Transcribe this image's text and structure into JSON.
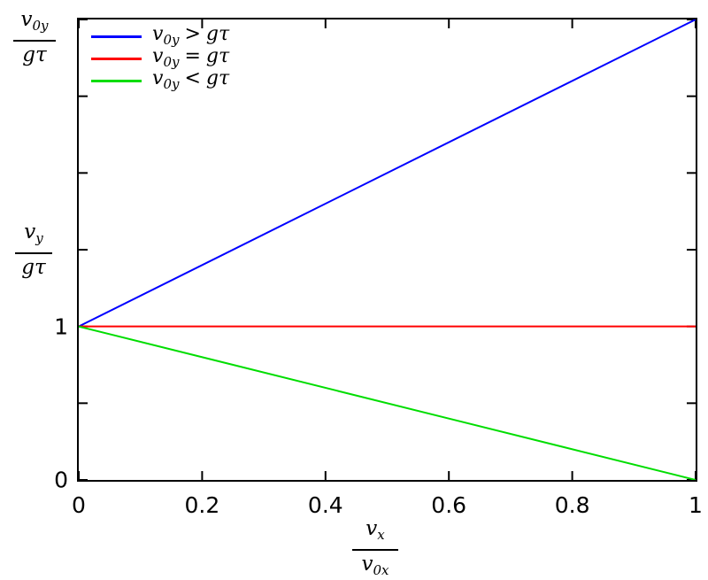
{
  "figure": {
    "background": "#ffffff",
    "axis_color": "#000000"
  },
  "chart_data": {
    "type": "line",
    "title": "",
    "xlabel": "v_x / v_0x",
    "ylabel": "v_y / g*tau",
    "ylabel_secondary": "v_0y / g*tau",
    "xlim": [
      0,
      1
    ],
    "ylim": [
      0,
      3
    ],
    "grid": false,
    "legend_position": "top-left",
    "axis_color": "#000000",
    "tick_direction": "in",
    "tick_mirror": true,
    "x_ticks": [
      {
        "value": 0,
        "label": "0"
      },
      {
        "value": 0.2,
        "label": "0.2"
      },
      {
        "value": 0.4,
        "label": "0.4"
      },
      {
        "value": 0.6,
        "label": "0.6"
      },
      {
        "value": 0.8,
        "label": "0.8"
      },
      {
        "value": 1,
        "label": "1"
      }
    ],
    "y_ticks": [
      {
        "value": 0,
        "label": "0"
      },
      {
        "value": 0.5,
        "label": ""
      },
      {
        "value": 1,
        "label": "1"
      },
      {
        "value": 1.5,
        "label": ""
      },
      {
        "value": 2,
        "label": ""
      },
      {
        "value": 2.5,
        "label": ""
      },
      {
        "value": 3,
        "label": ""
      }
    ],
    "series": [
      {
        "name": "v_0y > g*tau",
        "color": "#0000ff",
        "x": [
          0,
          1
        ],
        "y": [
          1,
          3
        ]
      },
      {
        "name": "v_0y = g*tau",
        "color": "#ff0000",
        "x": [
          0,
          1
        ],
        "y": [
          1,
          1
        ]
      },
      {
        "name": "v_0y < g*tau",
        "color": "#00dd00",
        "x": [
          0,
          1
        ],
        "y": [
          1,
          0
        ]
      }
    ]
  },
  "legend": {
    "items": [
      {
        "color": "#0000ff",
        "var_base": "v",
        "var_sub": "0y",
        "operator": ">",
        "rhs": "gτ"
      },
      {
        "color": "#ff0000",
        "var_base": "v",
        "var_sub": "0y",
        "operator": "=",
        "rhs": "gτ"
      },
      {
        "color": "#00dd00",
        "var_base": "v",
        "var_sub": "0y",
        "operator": "<",
        "rhs": "gτ"
      }
    ]
  },
  "labels": {
    "y_secondary": {
      "num_base": "v",
      "num_sub": "0y",
      "den": "gτ"
    },
    "y_primary": {
      "num_base": "v",
      "num_sub": "y",
      "den": "gτ"
    },
    "x": {
      "num_base": "v",
      "num_sub": "x",
      "den_base": "v",
      "den_sub": "0x"
    }
  }
}
